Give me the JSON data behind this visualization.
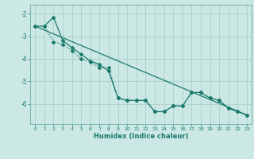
{
  "xlabel": "Humidex (Indice chaleur)",
  "ylabel": "",
  "background_color": "#cce8e4",
  "grid_color": "#aacfcb",
  "line_color": "#1a7a6e",
  "xlim": [
    -0.5,
    23.5
  ],
  "ylim": [
    -6.9,
    -1.6
  ],
  "yticks": [
    -2,
    -3,
    -4,
    -5,
    -6
  ],
  "xticks": [
    0,
    1,
    2,
    3,
    4,
    5,
    6,
    7,
    8,
    9,
    10,
    11,
    12,
    13,
    14,
    15,
    16,
    17,
    18,
    19,
    20,
    21,
    22,
    23
  ],
  "line1_x": [
    0,
    1,
    2,
    3,
    4,
    5,
    6,
    7,
    8,
    9,
    10,
    11,
    12,
    13,
    14,
    15,
    16,
    17,
    18,
    19,
    20,
    21,
    22,
    23
  ],
  "line1_y": [
    -2.55,
    -2.55,
    -2.15,
    -3.2,
    -3.5,
    -3.8,
    -4.1,
    -4.25,
    -4.55,
    -5.75,
    -5.85,
    -5.85,
    -5.85,
    -6.35,
    -6.35,
    -6.1,
    -6.1,
    -5.5,
    -5.5,
    -5.75,
    -5.85,
    -6.2,
    -6.35,
    -6.5
  ],
  "line2_x": [
    0,
    1,
    2,
    3,
    4,
    5,
    6,
    7,
    8,
    9,
    10,
    11,
    12,
    13,
    14,
    15,
    16,
    17,
    18,
    19,
    20,
    21,
    22,
    23
  ],
  "line2_y": [
    -2.55,
    -2.55,
    -3.25,
    -3.35,
    -3.65,
    -4.0,
    -4.15,
    -4.4,
    -4.4,
    -5.75,
    -5.85,
    -5.85,
    -5.85,
    -6.35,
    -6.35,
    -6.1,
    -6.1,
    -5.5,
    -5.5,
    -5.75,
    -5.85,
    -6.2,
    -6.35,
    -6.5
  ],
  "line3_x": [
    0,
    23
  ],
  "line3_y": [
    -2.55,
    -6.5
  ]
}
